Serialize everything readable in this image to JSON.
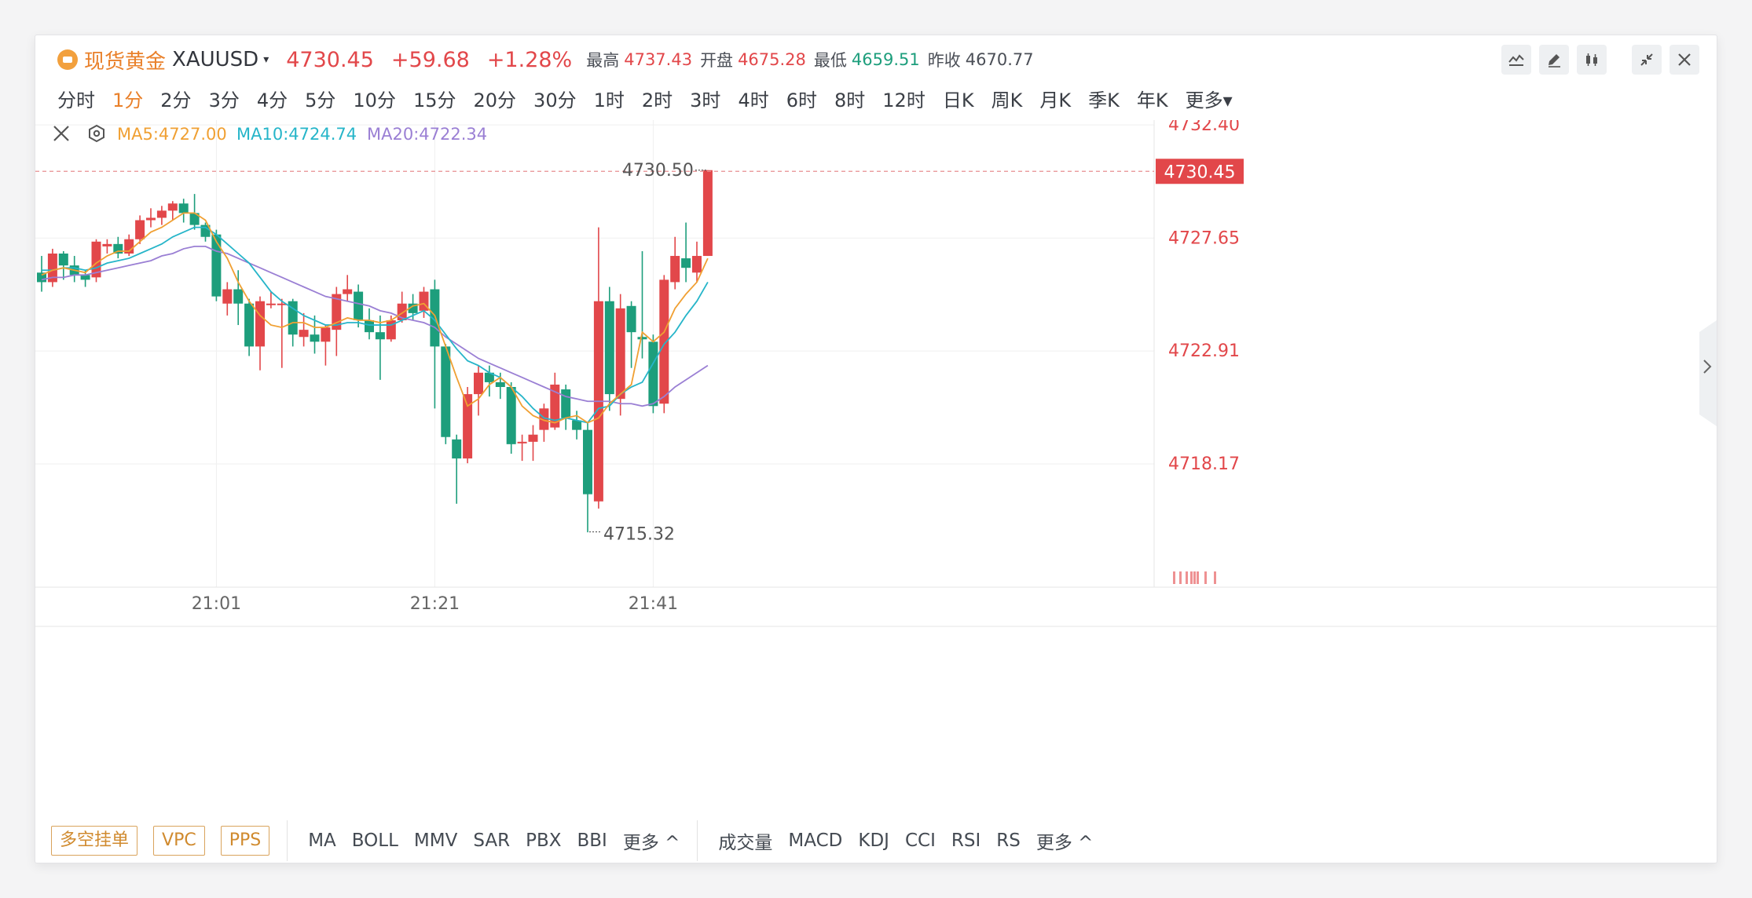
{
  "header": {
    "name": "现货黄金",
    "symbol": "XAUUSD",
    "price": "4730.45",
    "change": "+59.68",
    "change_pct": "+1.28%",
    "high_label": "最高",
    "high": "4737.43",
    "open_label": "开盘",
    "open": "4675.28",
    "low_label": "最低",
    "low": "4659.51",
    "prev_label": "昨收",
    "prev": "4670.77",
    "caret": "▾"
  },
  "periods": [
    "分时",
    "1分",
    "2分",
    "3分",
    "4分",
    "5分",
    "10分",
    "15分",
    "20分",
    "30分",
    "1时",
    "2时",
    "3时",
    "4时",
    "6时",
    "8时",
    "12时",
    "日K",
    "周K",
    "月K",
    "季K",
    "年K",
    "更多▾"
  ],
  "active_period": "1分",
  "legend": {
    "ma5": "MA5:4727.00",
    "ma10": "MA10:4724.74",
    "ma20": "MA20:4722.34"
  },
  "colors": {
    "up": "#e2474a",
    "down": "#1d9e7c",
    "ma5": "#f0a033",
    "ma10": "#26b5c9",
    "ma20": "#9a7fd4",
    "accent": "#e9802a"
  },
  "bottom": {
    "buttons": [
      "多空挂单",
      "VPC",
      "PPS"
    ],
    "main_indicators": [
      "MA",
      "BOLL",
      "MMV",
      "SAR",
      "PBX",
      "BBI",
      "更多 ^"
    ],
    "sub_indicators": [
      "成交量",
      "MACD",
      "KDJ",
      "CCI",
      "RSI",
      "RS",
      "更多 ^"
    ]
  },
  "chart_data": {
    "type": "candlestick",
    "y_ticks": [
      4732.4,
      4727.65,
      4722.91,
      4718.17
    ],
    "ylim": [
      4713.0,
      4732.6
    ],
    "x_ticks": [
      "21:01",
      "21:21",
      "21:41"
    ],
    "x_tick_index": [
      16,
      36,
      56
    ],
    "last_price": 4730.45,
    "high_marker": 4730.5,
    "low_marker": 4715.32,
    "candles": [
      [
        4726.2,
        4725.8,
        4726.9,
        4725.4
      ],
      [
        4725.8,
        4727.0,
        4727.2,
        4725.6
      ],
      [
        4727.0,
        4726.5,
        4727.1,
        4725.9
      ],
      [
        4726.5,
        4726.1,
        4726.9,
        4725.8
      ],
      [
        4726.1,
        4725.9,
        4726.3,
        4725.6
      ],
      [
        4726.0,
        4727.5,
        4727.6,
        4725.8
      ],
      [
        4727.3,
        4727.4,
        4727.6,
        4727.0
      ],
      [
        4727.4,
        4727.0,
        4727.7,
        4726.8
      ],
      [
        4727.0,
        4727.6,
        4727.8,
        4726.9
      ],
      [
        4727.6,
        4728.4,
        4728.6,
        4727.4
      ],
      [
        4728.4,
        4728.5,
        4728.9,
        4728.1
      ],
      [
        4728.5,
        4728.8,
        4729.0,
        4728.2
      ],
      [
        4728.8,
        4729.1,
        4729.2,
        4728.4
      ],
      [
        4729.1,
        4728.7,
        4729.3,
        4728.3
      ],
      [
        4728.7,
        4728.2,
        4729.5,
        4728.0
      ],
      [
        4728.2,
        4727.7,
        4728.3,
        4727.5
      ],
      [
        4727.8,
        4725.2,
        4728.0,
        4725.0
      ],
      [
        4724.9,
        4725.5,
        4725.8,
        4724.4
      ],
      [
        4725.5,
        4724.9,
        4726.3,
        4724.0
      ],
      [
        4724.9,
        4723.1,
        4725.1,
        4722.7
      ],
      [
        4723.1,
        4725.0,
        4725.2,
        4722.1
      ],
      [
        4724.9,
        4724.9,
        4725.4,
        4724.7
      ],
      [
        4724.9,
        4724.9,
        4725.1,
        4722.2
      ],
      [
        4725.0,
        4723.6,
        4725.1,
        4723.1
      ],
      [
        4723.5,
        4723.8,
        4724.5,
        4723.1
      ],
      [
        4723.6,
        4723.3,
        4724.4,
        4722.8
      ],
      [
        4723.3,
        4723.9,
        4724.0,
        4722.3
      ],
      [
        4723.8,
        4725.3,
        4725.6,
        4722.7
      ],
      [
        4725.3,
        4725.5,
        4726.1,
        4725.0
      ],
      [
        4725.4,
        4724.2,
        4725.7,
        4723.9
      ],
      [
        4724.2,
        4723.7,
        4724.7,
        4723.4
      ],
      [
        4723.7,
        4723.4,
        4724.4,
        4721.7
      ],
      [
        4723.4,
        4724.2,
        4724.4,
        4723.3
      ],
      [
        4724.2,
        4724.9,
        4725.4,
        4724.1
      ],
      [
        4724.9,
        4724.5,
        4725.3,
        4724.2
      ],
      [
        4724.6,
        4725.4,
        4725.6,
        4724.3
      ],
      [
        4725.5,
        4723.1,
        4725.9,
        4720.5
      ],
      [
        4723.1,
        4719.3,
        4723.2,
        4719.0
      ],
      [
        4719.2,
        4718.4,
        4719.4,
        4716.5
      ],
      [
        4718.4,
        4721.1,
        4721.4,
        4718.2
      ],
      [
        4721.1,
        4722.0,
        4722.3,
        4720.2
      ],
      [
        4722.0,
        4721.6,
        4722.3,
        4721.0
      ],
      [
        4721.6,
        4721.4,
        4722.0,
        4720.9
      ],
      [
        4721.4,
        4719.0,
        4721.6,
        4718.6
      ],
      [
        4719.1,
        4719.1,
        4719.4,
        4718.3
      ],
      [
        4719.1,
        4719.4,
        4719.8,
        4718.3
      ],
      [
        4719.6,
        4720.5,
        4720.7,
        4719.1
      ],
      [
        4719.7,
        4721.5,
        4722.0,
        4719.6
      ],
      [
        4721.3,
        4720.1,
        4721.5,
        4719.6
      ],
      [
        4720.0,
        4719.6,
        4720.4,
        4719.2
      ],
      [
        4719.6,
        4716.9,
        4719.9,
        4715.3
      ],
      [
        4716.6,
        4725.0,
        4728.1,
        4716.3
      ],
      [
        4725.0,
        4721.1,
        4725.6,
        4720.4
      ],
      [
        4720.9,
        4724.7,
        4725.3,
        4720.2
      ],
      [
        4724.8,
        4723.7,
        4725.0,
        4722.2
      ],
      [
        4723.5,
        4723.4,
        4727.1,
        4722.6
      ],
      [
        4723.3,
        4720.6,
        4723.6,
        4720.3
      ],
      [
        4720.7,
        4725.9,
        4726.1,
        4720.3
      ],
      [
        4725.8,
        4726.9,
        4727.7,
        4725.5
      ],
      [
        4726.8,
        4726.4,
        4728.3,
        4725.8
      ],
      [
        4726.2,
        4726.9,
        4727.5,
        4725.8
      ],
      [
        4726.9,
        4730.5,
        4730.5,
        4726.9
      ]
    ],
    "ma5": [
      4726.1,
      4726.3,
      4726.4,
      4726.3,
      4726.2,
      4726.6,
      4726.9,
      4727.1,
      4727.1,
      4727.5,
      4727.9,
      4728.1,
      4728.4,
      4728.7,
      4728.7,
      4728.4,
      4727.5,
      4726.8,
      4725.8,
      4725.0,
      4724.4,
      4724.0,
      4723.9,
      4724.1,
      4724.1,
      4723.9,
      4723.9,
      4724.1,
      4724.3,
      4724.2,
      4724.2,
      4724.1,
      4724.2,
      4724.5,
      4724.8,
      4724.9,
      4724.4,
      4723.1,
      4721.8,
      4720.6,
      4720.9,
      4721.5,
      4721.8,
      4721.4,
      4720.6,
      4720.2,
      4720.0,
      4719.9,
      4720.1,
      4720.2,
      4719.9,
      4720.1,
      4720.7,
      4721.1,
      4721.5,
      4723.7,
      4723.3,
      4723.7,
      4724.7,
      4725.3,
      4725.8,
      4726.8
    ],
    "ma10": [
      4726.3,
      4726.3,
      4726.4,
      4726.4,
      4726.3,
      4726.4,
      4726.6,
      4726.7,
      4726.8,
      4727.0,
      4727.2,
      4727.4,
      4727.7,
      4727.9,
      4728.1,
      4728.1,
      4727.8,
      4727.4,
      4727.0,
      4726.6,
      4726.0,
      4725.4,
      4725.0,
      4724.7,
      4724.4,
      4724.2,
      4724.0,
      4724.0,
      4724.1,
      4724.1,
      4724.0,
      4724.0,
      4724.0,
      4724.2,
      4724.4,
      4724.6,
      4724.2,
      4723.6,
      4723.0,
      4722.5,
      4722.3,
      4722.0,
      4721.8,
      4721.4,
      4721.0,
      4720.5,
      4720.1,
      4720.0,
      4720.1,
      4720.0,
      4719.9,
      4720.5,
      4720.6,
      4721.1,
      4721.4,
      4721.6,
      4722.4,
      4723.2,
      4723.7,
      4724.4,
      4725.0,
      4725.8
    ],
    "ma20": [
      4725.9,
      4726.0,
      4726.0,
      4726.1,
      4726.1,
      4726.2,
      4726.3,
      4726.4,
      4726.5,
      4726.6,
      4726.7,
      4726.9,
      4727.0,
      4727.2,
      4727.3,
      4727.3,
      4727.1,
      4727.0,
      4726.8,
      4726.6,
      4726.4,
      4726.2,
      4726.0,
      4725.8,
      4725.6,
      4725.4,
      4725.2,
      4725.1,
      4725.0,
      4724.9,
      4724.8,
      4724.6,
      4724.5,
      4724.3,
      4724.2,
      4724.1,
      4723.9,
      4723.5,
      4723.2,
      4722.9,
      4722.6,
      4722.4,
      4722.2,
      4722.0,
      4721.8,
      4721.6,
      4721.4,
      4721.2,
      4721.0,
      4720.9,
      4720.8,
      4720.8,
      4720.8,
      4720.7,
      4720.7,
      4720.6,
      4720.7,
      4721.0,
      4721.4,
      4721.7,
      4722.0,
      4722.3
    ]
  }
}
